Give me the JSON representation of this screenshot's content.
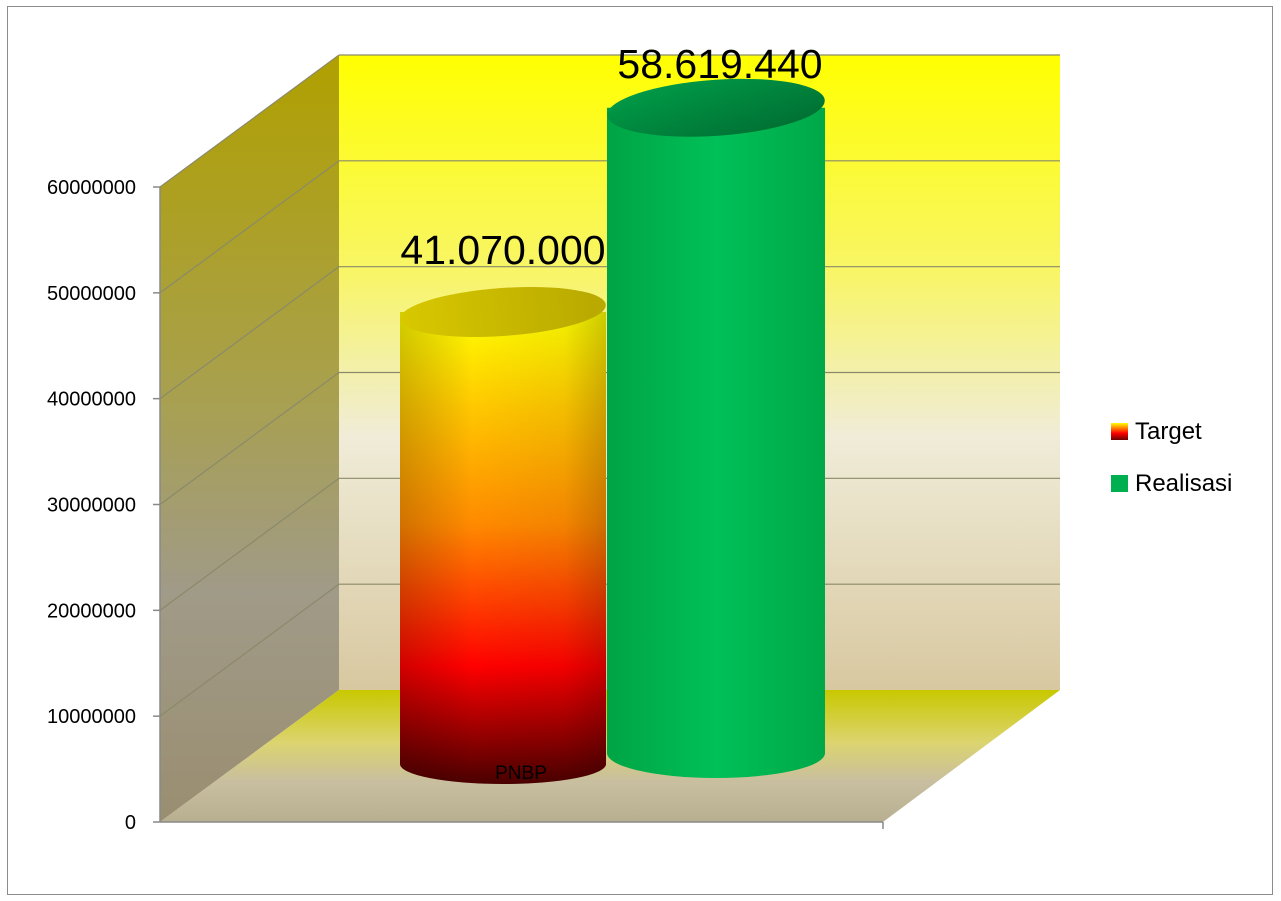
{
  "chart_data": {
    "type": "bar",
    "style": "3d-cylinder",
    "categories": [
      "PNBP"
    ],
    "series": [
      {
        "name": "Target",
        "values": [
          41070000
        ],
        "label": "41.070.000",
        "colors": [
          "#5a0000",
          "#ff0000",
          "#ffa500",
          "#ffff00"
        ]
      },
      {
        "name": "Realisasi",
        "values": [
          58619440
        ],
        "label": "58.619.440",
        "colors": [
          "#00b050",
          "#00b050"
        ]
      }
    ],
    "ylim": [
      0,
      60000000
    ],
    "yticks": [
      0,
      10000000,
      20000000,
      30000000,
      40000000,
      50000000,
      60000000
    ],
    "ytick_labels": [
      "0",
      "10000000",
      "20000000",
      "30000000",
      "40000000",
      "50000000",
      "60000000"
    ],
    "grid": true,
    "legend": "right",
    "background": {
      "back_wall_top": "#ffff00",
      "back_wall_bottom": "#d8c8a0",
      "side_wall": "#b0a000",
      "floor": "#c8c800"
    }
  }
}
